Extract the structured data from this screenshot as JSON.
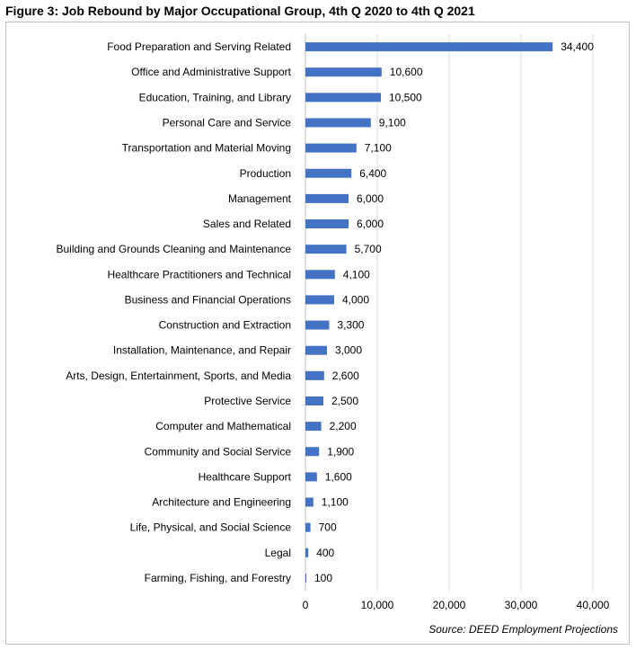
{
  "figure_title": "Figure 3: Job Rebound by Major Occupational Group, 4th Q 2020 to 4th Q 2021",
  "source": "Source: DEED Employment Projections",
  "colors": {
    "bar": "#4472C4",
    "grid": "#d9d9d9",
    "axis": "#bfbfbf"
  },
  "chart_data": {
    "type": "bar",
    "orientation": "horizontal",
    "title": "Figure 3: Job Rebound by Major Occupational Group, 4th Q 2020 to 4th Q 2021",
    "xlabel": "",
    "ylabel": "",
    "xlim": [
      0,
      40000
    ],
    "xticks": [
      0,
      10000,
      20000,
      30000,
      40000
    ],
    "xtick_labels": [
      "0",
      "10,000",
      "20,000",
      "30,000",
      "40,000"
    ],
    "grid": true,
    "categories": [
      "Food Preparation and Serving Related",
      "Office and Administrative Support",
      "Education, Training, and Library",
      "Personal Care and Service",
      "Transportation and Material Moving",
      "Production",
      "Management",
      "Sales and Related",
      "Building and Grounds Cleaning and Maintenance",
      "Healthcare Practitioners and Technical",
      "Business and Financial Operations",
      "Construction and Extraction",
      "Installation, Maintenance, and Repair",
      "Arts, Design, Entertainment, Sports, and Media",
      "Protective Service",
      "Computer and Mathematical",
      "Community and Social Service",
      "Healthcare Support",
      "Architecture and Engineering",
      "Life, Physical, and Social Science",
      "Legal",
      "Farming, Fishing, and Forestry"
    ],
    "values": [
      34400,
      10600,
      10500,
      9100,
      7100,
      6400,
      6000,
      6000,
      5700,
      4100,
      4000,
      3300,
      3000,
      2600,
      2500,
      2200,
      1900,
      1600,
      1100,
      700,
      400,
      100
    ],
    "value_labels": [
      "34,400",
      "10,600",
      "10,500",
      "9,100",
      "7,100",
      "6,400",
      "6,000",
      "6,000",
      "5,700",
      "4,100",
      "4,000",
      "3,300",
      "3,000",
      "2,600",
      "2,500",
      "2,200",
      "1,900",
      "1,600",
      "1,100",
      "700",
      "400",
      "100"
    ]
  }
}
